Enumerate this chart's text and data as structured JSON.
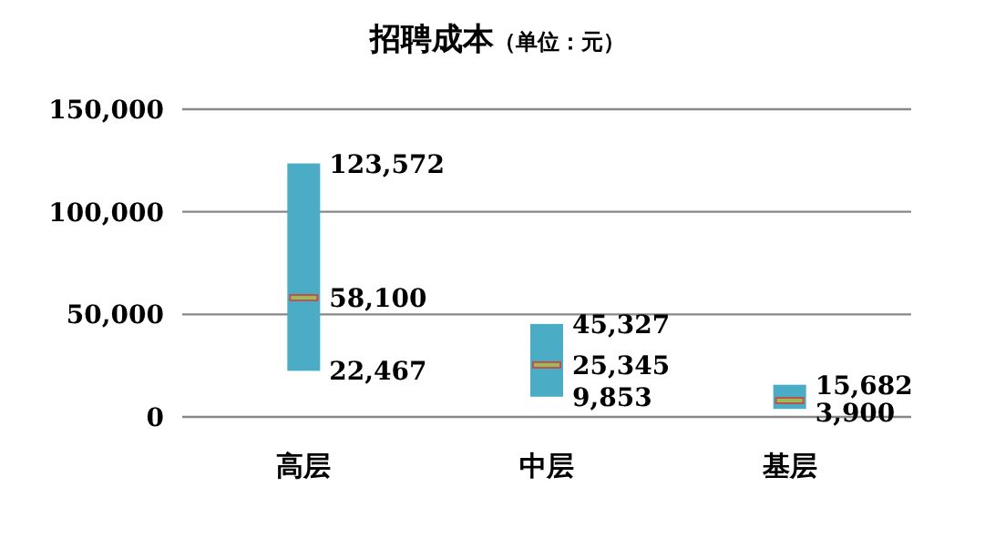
{
  "chart_data": {
    "type": "box",
    "title": "招聘成本",
    "subtitle": "（单位：元）",
    "categories": [
      "高层",
      "中层",
      "基层"
    ],
    "boxes": [
      {
        "low": 22467,
        "q1": 22467,
        "median": 58100,
        "q3": 123572,
        "high": 123572
      },
      {
        "low": 9853,
        "q1": 9853,
        "median": 25345,
        "q3": 45327,
        "high": 45327
      },
      {
        "low": 3900,
        "q1": 3900,
        "median": 8000,
        "q3": 15682,
        "high": 15682
      }
    ],
    "color": "#4bacc6",
    "ylim": [
      0,
      150000
    ],
    "yticks": [
      {
        "value": 0,
        "label": "0"
      },
      {
        "value": 50000,
        "label": "50,000"
      },
      {
        "value": 100000,
        "label": "100,000"
      },
      {
        "value": 150000,
        "label": "150,000"
      }
    ],
    "grid": "y",
    "annotations": [
      {
        "text": "123,572",
        "x": "高层",
        "y": 123572
      },
      {
        "text": "58,100",
        "x": "高层",
        "y": 58100
      },
      {
        "text": "22,467",
        "x": "高层",
        "y": 22467
      },
      {
        "text": "45,327",
        "x": "中层",
        "y": 45327
      },
      {
        "text": "25,345",
        "x": "中层",
        "y": 25345
      },
      {
        "text": "9,853",
        "x": "中层",
        "y": 9853
      },
      {
        "text": "15,682",
        "x": "基层",
        "y": 15682
      },
      {
        "text": "3,900",
        "x": "基层",
        "y": 3900
      }
    ]
  }
}
